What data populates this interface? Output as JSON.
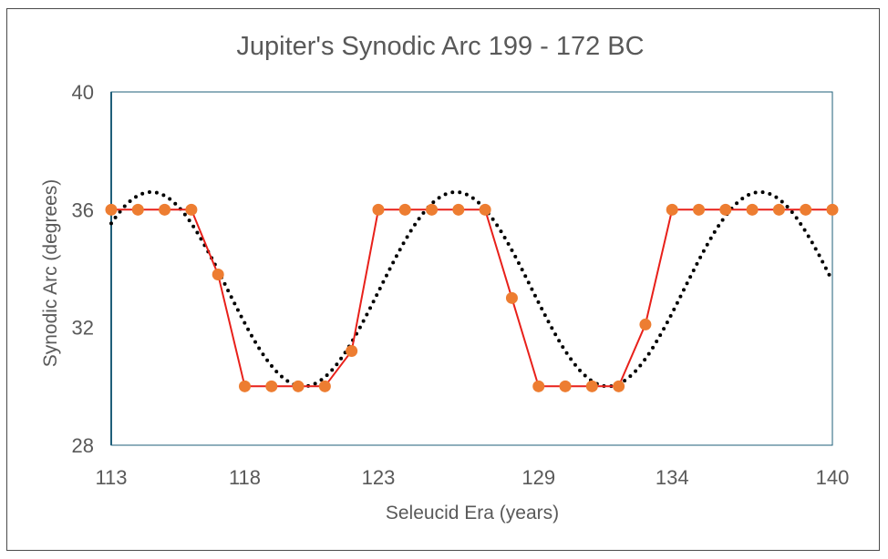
{
  "chart_data": {
    "type": "line",
    "title": "Jupiter's Synodic Arc 199 - 172 BC",
    "xlabel": "Seleucid Era (years)",
    "ylabel": "Synodic Arc (degrees)",
    "xlim": [
      113,
      140
    ],
    "ylim": [
      28,
      40
    ],
    "x_ticks": [
      "113",
      "118",
      "123",
      "129",
      "134",
      "140"
    ],
    "y_ticks": [
      "28",
      "32",
      "36",
      "40"
    ],
    "grid": false,
    "legend": "none",
    "series": [
      {
        "style": "solid line with circle markers",
        "line_color": "#e8201a",
        "marker_color": "#ed7d31",
        "x": [
          113,
          114,
          115,
          116,
          117,
          118,
          119,
          120,
          121,
          122,
          123,
          124,
          125,
          126,
          127,
          128,
          129,
          130,
          131,
          132,
          133,
          134,
          135,
          136,
          137,
          138,
          139,
          140
        ],
        "y": [
          36,
          36,
          36,
          36,
          33.8,
          30,
          30,
          30,
          30,
          31.2,
          36,
          36,
          36,
          36,
          36,
          33,
          30,
          30,
          30,
          30,
          32.1,
          36,
          36,
          36,
          36,
          36,
          36,
          36
        ]
      },
      {
        "style": "dotted curve",
        "line_color": "#000000",
        "function": "sinusoid",
        "mean": 33.3,
        "amplitude": 3.3,
        "period": 11.4,
        "peak_x": 114.5,
        "x_range": [
          113,
          140
        ]
      }
    ]
  }
}
